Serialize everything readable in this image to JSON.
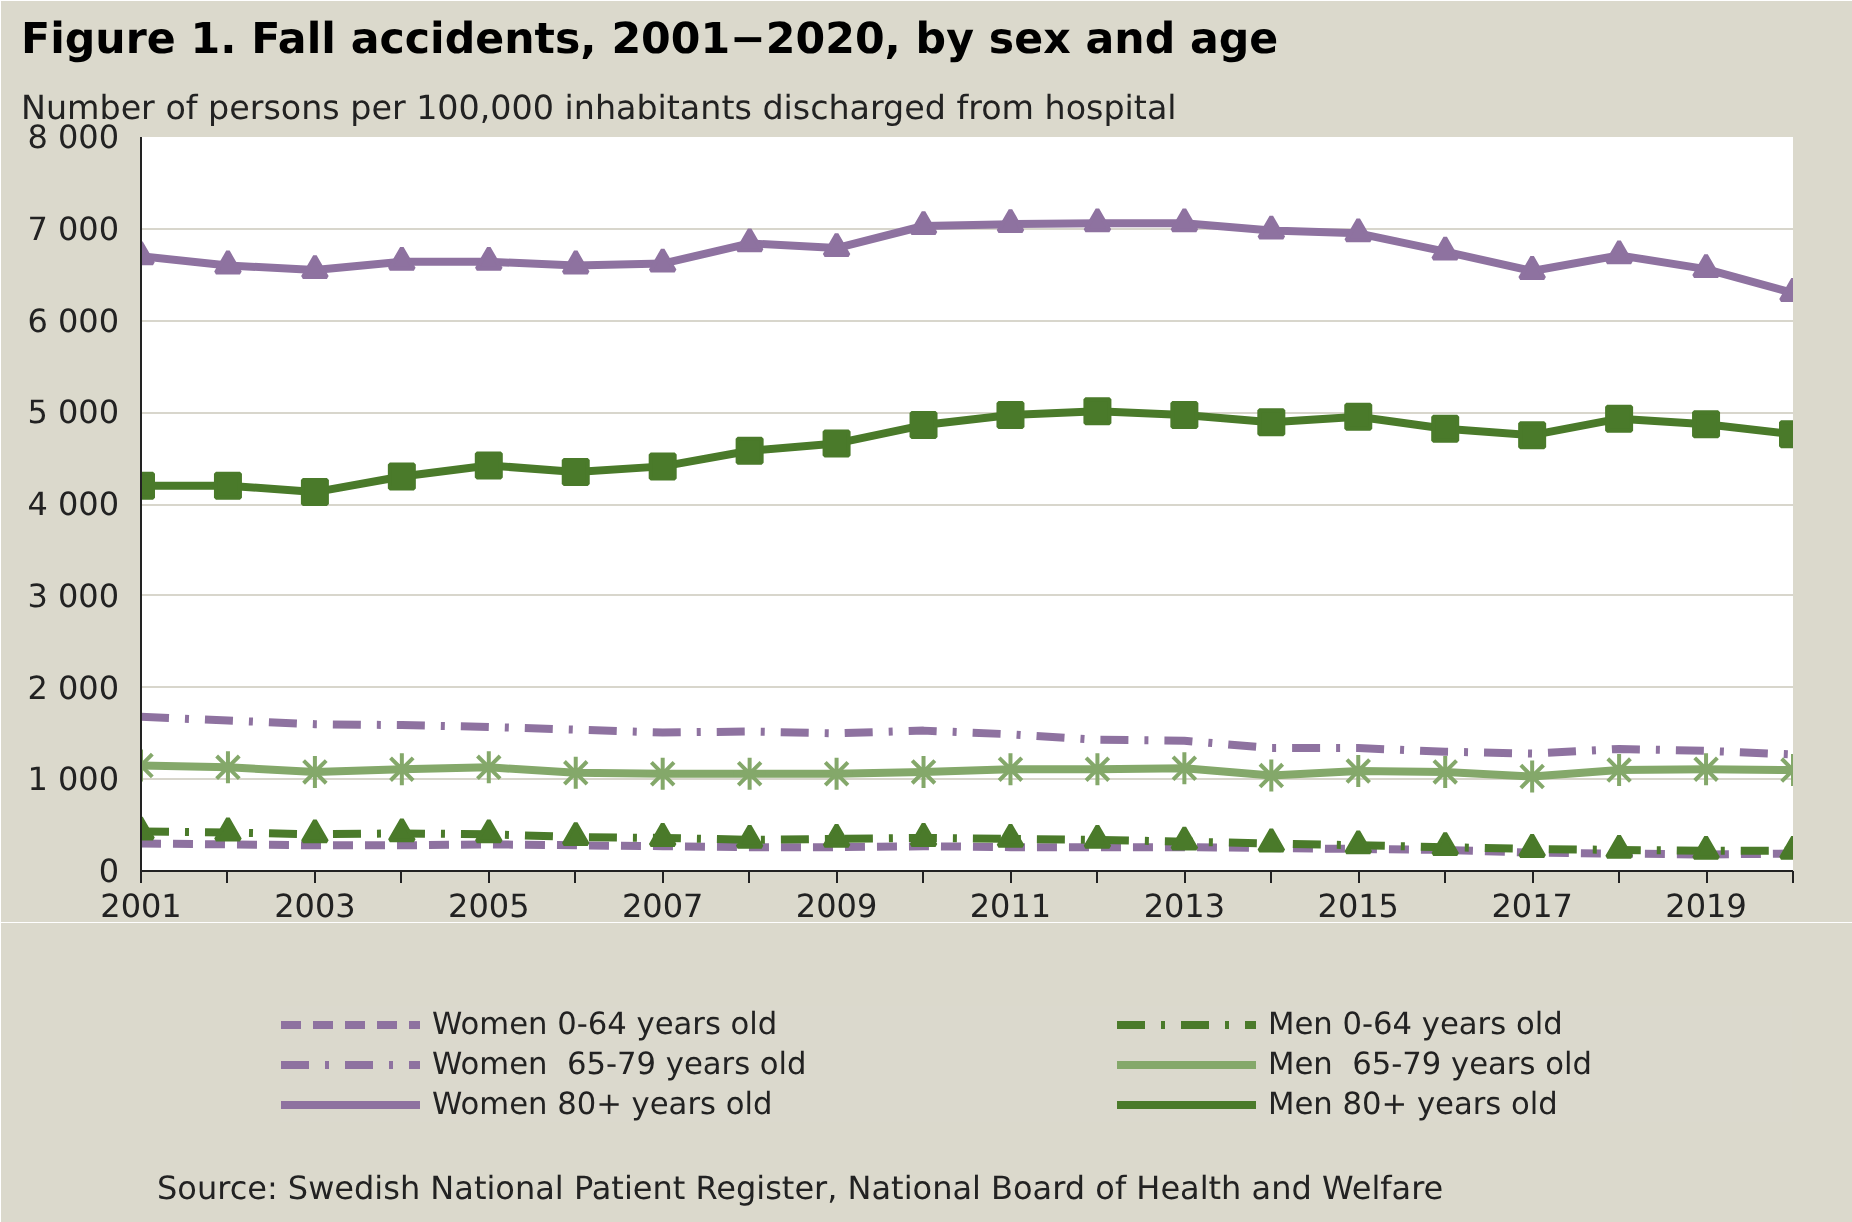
{
  "chart_data": {
    "type": "line",
    "title": "Figure 1. Fall accidents, 2001−2020, by sex and age",
    "subtitle": "Number of persons per 100,000 inhabitants discharged from hospital",
    "annotations": [
      "Source: Swedish National Patient Register, National Board of Health and Welfare"
    ],
    "x": [
      2001,
      2002,
      2003,
      2004,
      2005,
      2006,
      2007,
      2008,
      2009,
      2010,
      2011,
      2012,
      2013,
      2014,
      2015,
      2016,
      2017,
      2018,
      2019,
      2020
    ],
    "xlim": [
      2001,
      2020
    ],
    "xticks": [
      2001,
      2003,
      2005,
      2007,
      2009,
      2011,
      2013,
      2015,
      2017,
      2019
    ],
    "ylim": [
      0,
      8000
    ],
    "yticks": [
      0,
      {
        "value": 1000,
        "label": "1 000"
      },
      {
        "value": 2000,
        "label": "2 000"
      },
      {
        "value": 3000,
        "label": "3 000"
      },
      {
        "value": 4000,
        "label": "4 000"
      },
      {
        "value": 5000,
        "label": "5 000"
      },
      {
        "value": 6000,
        "label": "6 000"
      },
      {
        "value": 7000,
        "label": "7 000"
      },
      {
        "value": 8000,
        "label": "8 000"
      }
    ],
    "grid": "y",
    "legend": "bottom",
    "series": [
      {
        "name": "Women 0-64 years old",
        "color": "#8e72a0",
        "line_style": "dashed",
        "marker": "none",
        "values": [
          300,
          290,
          280,
          280,
          290,
          280,
          270,
          260,
          260,
          270,
          260,
          260,
          260,
          250,
          240,
          230,
          200,
          190,
          180,
          190
        ]
      },
      {
        "name": "Women  65-79 years old",
        "color": "#8e72a0",
        "line_style": "dashdot",
        "marker": "none",
        "values": [
          1680,
          1640,
          1600,
          1590,
          1570,
          1540,
          1510,
          1520,
          1500,
          1530,
          1490,
          1430,
          1420,
          1340,
          1340,
          1300,
          1280,
          1330,
          1310,
          1270
        ]
      },
      {
        "name": "Women 80+ years old",
        "color": "#8e72a0",
        "line_style": "solid",
        "marker": "triangle",
        "values": [
          6700,
          6600,
          6550,
          6640,
          6640,
          6600,
          6620,
          6840,
          6790,
          7030,
          7050,
          7060,
          7060,
          6980,
          6950,
          6750,
          6540,
          6710,
          6560,
          6300
        ]
      },
      {
        "name": "Men 0-64 years old",
        "color": "#4a7a2a",
        "line_style": "dashdot",
        "marker": "triangle",
        "values": [
          430,
          420,
          400,
          410,
          400,
          370,
          360,
          340,
          350,
          360,
          350,
          340,
          320,
          300,
          280,
          260,
          240,
          230,
          220,
          220
        ]
      },
      {
        "name": "Men  65-79 years old",
        "color": "#84a86a",
        "line_style": "solid",
        "marker": "cross",
        "values": [
          1150,
          1130,
          1080,
          1110,
          1130,
          1070,
          1060,
          1060,
          1060,
          1080,
          1110,
          1110,
          1120,
          1040,
          1090,
          1080,
          1030,
          1100,
          1110,
          1100
        ]
      },
      {
        "name": "Men 80+ years old",
        "color": "#4a7a2a",
        "line_style": "solid",
        "marker": "square",
        "values": [
          4200,
          4200,
          4130,
          4300,
          4420,
          4350,
          4410,
          4580,
          4660,
          4860,
          4970,
          5010,
          4970,
          4890,
          4950,
          4820,
          4750,
          4930,
          4870,
          4760
        ]
      }
    ]
  }
}
